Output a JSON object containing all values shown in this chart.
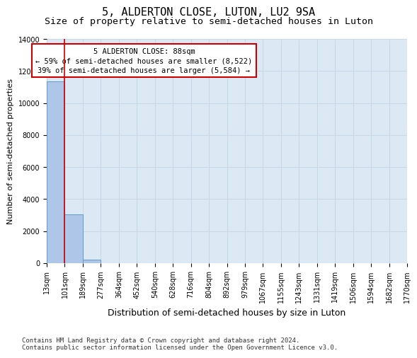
{
  "title": "5, ALDERTON CLOSE, LUTON, LU2 9SA",
  "subtitle": "Size of property relative to semi-detached houses in Luton",
  "xlabel": "Distribution of semi-detached houses by size in Luton",
  "ylabel": "Number of semi-detached properties",
  "footer_line1": "Contains HM Land Registry data © Crown copyright and database right 2024.",
  "footer_line2": "Contains public sector information licensed under the Open Government Licence v3.0.",
  "bin_labels": [
    "13sqm",
    "101sqm",
    "189sqm",
    "277sqm",
    "364sqm",
    "452sqm",
    "540sqm",
    "628sqm",
    "716sqm",
    "804sqm",
    "892sqm",
    "979sqm",
    "1067sqm",
    "1155sqm",
    "1243sqm",
    "1331sqm",
    "1419sqm",
    "1506sqm",
    "1594sqm",
    "1682sqm",
    "1770sqm"
  ],
  "bar_values": [
    11350,
    3050,
    200,
    0,
    0,
    0,
    0,
    0,
    0,
    0,
    0,
    0,
    0,
    0,
    0,
    0,
    0,
    0,
    0,
    0
  ],
  "bar_color": "#aec6e8",
  "bar_edge_color": "#5b9bd5",
  "grid_color": "#c8d8e8",
  "background_color": "#dce9f5",
  "red_line_color": "#cc0000",
  "annotation_text": "5 ALDERTON CLOSE: 88sqm\n← 59% of semi-detached houses are smaller (8,522)\n39% of semi-detached houses are larger (5,584) →",
  "annotation_box_color": "#ffffff",
  "annotation_border_color": "#cc0000",
  "ylim": [
    0,
    14000
  ],
  "yticks": [
    0,
    2000,
    4000,
    6000,
    8000,
    10000,
    12000,
    14000
  ],
  "title_fontsize": 11,
  "subtitle_fontsize": 9.5,
  "xlabel_fontsize": 9,
  "ylabel_fontsize": 8,
  "tick_fontsize": 7,
  "annotation_fontsize": 7.5,
  "footer_fontsize": 6.5
}
